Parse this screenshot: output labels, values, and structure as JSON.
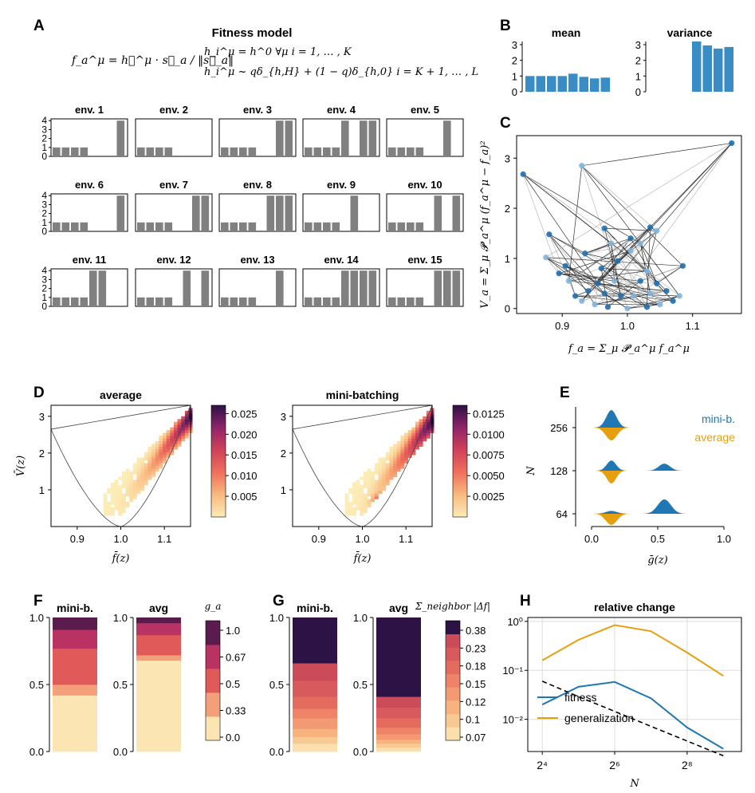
{
  "panel_labels": {
    "a": "A",
    "b": "B",
    "c": "C",
    "d": "D",
    "e": "E",
    "f": "F",
    "g": "G",
    "h": "H"
  },
  "A": {
    "title": "Fitness model",
    "eq_fitness": "f_a^μ = h⃗^μ · s⃗_a / ‖s⃗_a‖",
    "eq_h1": "h_i^μ = h^0 ∀μ   i = 1, … , K",
    "eq_h2": "h_i^μ ~ qδ_{h,H} + (1 − q)δ_{h,0}   i = K + 1, … , L",
    "yticks": [
      "0",
      "1",
      "2",
      "3",
      "4"
    ],
    "envs": [
      {
        "name": "env. 1",
        "bars": [
          1,
          1,
          1,
          1,
          0,
          0,
          0,
          4
        ]
      },
      {
        "name": "env. 2",
        "bars": [
          1,
          1,
          1,
          1,
          0,
          0,
          0,
          0
        ]
      },
      {
        "name": "env. 3",
        "bars": [
          1,
          1,
          1,
          1,
          0,
          0,
          4,
          4
        ]
      },
      {
        "name": "env. 4",
        "bars": [
          1,
          1,
          1,
          1,
          4,
          0,
          4,
          4
        ]
      },
      {
        "name": "env. 5",
        "bars": [
          1,
          1,
          1,
          1,
          0,
          0,
          4,
          0
        ]
      },
      {
        "name": "env. 6",
        "bars": [
          1,
          1,
          1,
          1,
          0,
          0,
          0,
          4
        ]
      },
      {
        "name": "env. 7",
        "bars": [
          1,
          1,
          1,
          1,
          0,
          0,
          4,
          4
        ]
      },
      {
        "name": "env. 8",
        "bars": [
          1,
          1,
          1,
          1,
          0,
          4,
          4,
          4
        ]
      },
      {
        "name": "env. 9",
        "bars": [
          1,
          1,
          1,
          1,
          0,
          4,
          0,
          0
        ]
      },
      {
        "name": "env. 10",
        "bars": [
          1,
          1,
          1,
          1,
          0,
          4,
          0,
          4
        ]
      },
      {
        "name": "env. 11",
        "bars": [
          1,
          1,
          1,
          1,
          4,
          4,
          0,
          0
        ]
      },
      {
        "name": "env. 12",
        "bars": [
          1,
          1,
          1,
          1,
          0,
          4,
          0,
          4
        ]
      },
      {
        "name": "env. 13",
        "bars": [
          1,
          1,
          1,
          1,
          0,
          0,
          4,
          0
        ]
      },
      {
        "name": "env. 14",
        "bars": [
          1,
          1,
          1,
          1,
          4,
          4,
          4,
          4
        ]
      },
      {
        "name": "env. 15",
        "bars": [
          1,
          1,
          1,
          1,
          0,
          4,
          4,
          4
        ]
      }
    ]
  },
  "chart_data": [
    {
      "panel": "B",
      "type": "bar",
      "title": "mean",
      "values": [
        1,
        1,
        1,
        1,
        1.15,
        0.95,
        0.85,
        0.9
      ],
      "ylim": [
        0,
        3.2
      ],
      "yticks": [
        "0",
        "1",
        "2",
        "3"
      ],
      "color": "#3a8cc4"
    },
    {
      "panel": "B",
      "type": "bar",
      "title": "variance",
      "values": [
        0,
        0,
        0,
        0,
        3.2,
        2.95,
        2.75,
        2.85
      ],
      "ylim": [
        0,
        3.2
      ],
      "yticks": [
        "0",
        "1",
        "2",
        "3"
      ],
      "color": "#3a8cc4"
    },
    {
      "panel": "C",
      "type": "scatter",
      "xlabel": "f_a = Σ_μ 𝓟_a^μ f_a^μ",
      "ylabel": "V_a = Σ_μ 𝓟_a^μ (f_a^μ − f_a)²",
      "xticks": [
        "0.9",
        "1.0",
        "1.1"
      ],
      "yticks": [
        "0",
        "1",
        "2",
        "3"
      ],
      "xlim": [
        0.83,
        1.175
      ],
      "ylim": [
        -0.1,
        3.45
      ],
      "points": [
        [
          1.0,
          0.0
        ],
        [
          0.97,
          0.03
        ],
        [
          1.03,
          0.03
        ],
        [
          0.95,
          0.08
        ],
        [
          1.05,
          0.08
        ],
        [
          0.93,
          0.15
        ],
        [
          1.07,
          0.15
        ],
        [
          0.92,
          0.25
        ],
        [
          1.08,
          0.25
        ],
        [
          0.94,
          0.35
        ],
        [
          1.06,
          0.35
        ],
        [
          0.965,
          0.3
        ],
        [
          1.035,
          0.3
        ],
        [
          0.99,
          0.25
        ],
        [
          1.01,
          0.25
        ],
        [
          0.955,
          0.5
        ],
        [
          1.045,
          0.5
        ],
        [
          0.98,
          0.55
        ],
        [
          1.02,
          0.55
        ],
        [
          0.91,
          0.55
        ],
        [
          0.895,
          0.7
        ],
        [
          0.905,
          0.85
        ],
        [
          0.875,
          1.02
        ],
        [
          0.935,
          1.1
        ],
        [
          0.975,
          1.3
        ],
        [
          0.965,
          1.6
        ],
        [
          1.005,
          1.15
        ],
        [
          1.005,
          1.4
        ],
        [
          1.02,
          1.3
        ],
        [
          1.035,
          1.62
        ],
        [
          1.045,
          1.55
        ],
        [
          1.085,
          0.85
        ],
        [
          0.88,
          1.48
        ],
        [
          0.93,
          2.85
        ],
        [
          0.84,
          2.68
        ],
        [
          1.16,
          3.3
        ],
        [
          0.96,
          0.8
        ],
        [
          1.03,
          0.75
        ],
        [
          0.985,
          0.95
        ]
      ],
      "light_points": [
        0,
        3,
        4,
        5,
        8,
        12,
        14,
        17,
        19,
        22,
        24,
        26,
        28,
        30,
        33,
        37
      ]
    },
    {
      "panel": "D",
      "type": "heatmap",
      "title": "average",
      "xlabel": "f̄(z)",
      "ylabel": "V̄(z)",
      "xticks": [
        "0.9",
        "1.0",
        "1.1"
      ],
      "yticks": [
        "1",
        "2",
        "3"
      ],
      "colorbar_ticks": [
        "0.005",
        "0.010",
        "0.015",
        "0.020",
        "0.025"
      ],
      "vmax": 0.027
    },
    {
      "panel": "D",
      "type": "heatmap",
      "title": "mini-batching",
      "xlabel": "f̄(z)",
      "yticks": [
        "1",
        "2",
        "3"
      ],
      "xticks": [
        "0.9",
        "1.0",
        "1.1"
      ],
      "colorbar_ticks": [
        "0.0025",
        "0.0050",
        "0.0075",
        "0.0100",
        "0.0125"
      ],
      "vmax": 0.013
    },
    {
      "panel": "E",
      "type": "area",
      "xlabel": "ḡ(z)",
      "ylabel": "N",
      "categories": [
        "256",
        "128",
        "64"
      ],
      "xticks": [
        "0.0",
        "0.5",
        "1.0"
      ],
      "series": [
        {
          "name": "mini-b.",
          "color": "#1f77b4"
        },
        {
          "name": "average",
          "color": "#e6a00f"
        }
      ]
    },
    {
      "panel": "F",
      "type": "bar",
      "titles": [
        "mini-b.",
        "avg"
      ],
      "colorbar_label": "g_a",
      "colorbar_ticks": [
        "1.0",
        "0.67",
        "0.5",
        "0.33",
        "0.0"
      ],
      "yticks": [
        "0.0",
        "0.5",
        "1.0"
      ],
      "stacks": [
        [
          0.42,
          0.08,
          0.27,
          0.14,
          0.09
        ],
        [
          0.68,
          0.04,
          0.15,
          0.09,
          0.04
        ]
      ]
    },
    {
      "panel": "G",
      "type": "bar",
      "titles": [
        "mini-b.",
        "avg"
      ],
      "colorbar_label": "Σ_neighbor |Δf|",
      "colorbar_ticks": [
        "0.38",
        "0.23",
        "0.18",
        "0.15",
        "0.12",
        "0.1",
        "0.07"
      ],
      "yticks": [
        "0.0",
        "0.5",
        "1.0"
      ],
      "stacks": [
        [
          0.06,
          0.05,
          0.06,
          0.08,
          0.07,
          0.09,
          0.12,
          0.13,
          0.34
        ],
        [
          0.03,
          0.03,
          0.03,
          0.04,
          0.05,
          0.07,
          0.08,
          0.08,
          0.59
        ]
      ]
    },
    {
      "panel": "H",
      "type": "line",
      "title": "relative change",
      "xlabel": "N",
      "xticks": [
        "2⁴",
        "2⁶",
        "2⁸"
      ],
      "yticks": [
        "10⁰",
        "10⁻¹",
        "10⁻²"
      ],
      "x_log2": [
        4,
        5,
        6,
        7,
        8,
        9
      ],
      "series": [
        {
          "name": "fitness",
          "color": "#1f77b4",
          "values": [
            0.02,
            0.046,
            0.058,
            0.027,
            0.0068,
            0.0025
          ]
        },
        {
          "name": "generalization",
          "color": "#e6a00f",
          "values": [
            0.16,
            0.42,
            0.84,
            0.63,
            0.23,
            0.077
          ]
        }
      ],
      "reference": {
        "style": "dashed",
        "values": [
          0.06,
          0.029,
          0.0145,
          0.0072,
          0.0036,
          0.0018
        ]
      }
    }
  ]
}
